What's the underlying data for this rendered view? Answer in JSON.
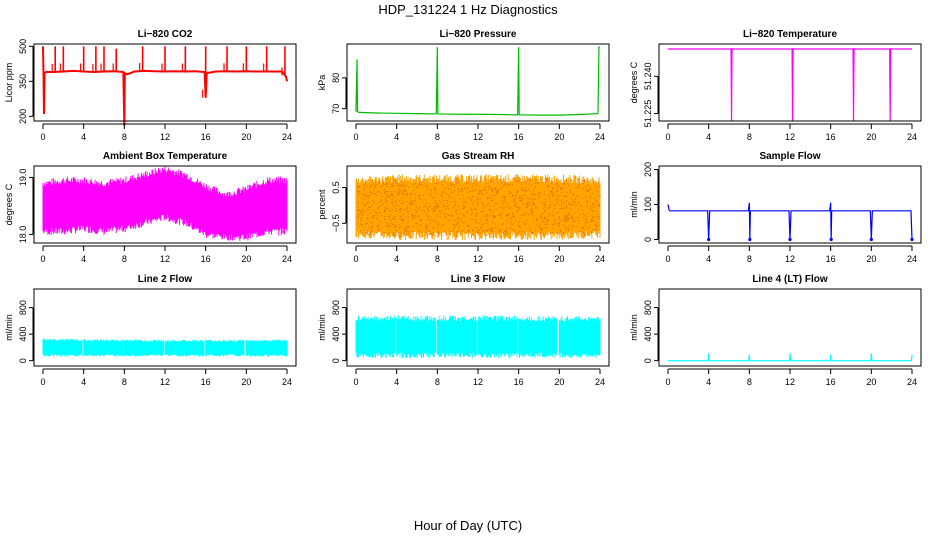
{
  "figure": {
    "title": "HDP_131224  1 Hz Diagnostics",
    "xlabel": "Hour of Day (UTC)"
  },
  "chart_data": [
    {
      "id": "co2",
      "type": "line",
      "title": "Li−820 CO2",
      "ylabel": "Licor ppm",
      "xlim": [
        0,
        24
      ],
      "ylim": [
        180,
        510
      ],
      "xticks": [
        "0",
        "4",
        "8",
        "12",
        "16",
        "20",
        "24"
      ],
      "yticks": [
        200,
        350,
        500
      ],
      "ytick_labels": [
        "200",
        "350",
        "500"
      ],
      "color": "#ff0000",
      "render": "line",
      "x": [
        0,
        0.05,
        0.1,
        0.15,
        0.3,
        1,
        2,
        3,
        4,
        5,
        6,
        7,
        7.9,
        8,
        8.05,
        8.3,
        9,
        10,
        11,
        12,
        13,
        14,
        15,
        15.9,
        16,
        16.1,
        17,
        18,
        19,
        20,
        21,
        22,
        23,
        23.5,
        23.9,
        24
      ],
      "y": [
        500,
        380,
        210,
        385,
        390,
        390,
        392,
        395,
        392,
        390,
        392,
        393,
        390,
        160,
        385,
        380,
        392,
        395,
        393,
        392,
        393,
        392,
        393,
        390,
        280,
        385,
        392,
        393,
        392,
        393,
        392,
        392,
        392,
        392,
        370,
        350
      ],
      "spikes": [
        {
          "x": 1.2,
          "y": 500
        },
        {
          "x": 2.0,
          "y": 500
        },
        {
          "x": 4.0,
          "y": 500
        },
        {
          "x": 5.2,
          "y": 500
        },
        {
          "x": 6.0,
          "y": 500
        },
        {
          "x": 7.2,
          "y": 490
        },
        {
          "x": 9.8,
          "y": 500
        },
        {
          "x": 12.0,
          "y": 500
        },
        {
          "x": 14.0,
          "y": 500
        },
        {
          "x": 16.0,
          "y": 500
        },
        {
          "x": 18.1,
          "y": 500
        },
        {
          "x": 20.0,
          "y": 500
        },
        {
          "x": 22.0,
          "y": 500
        },
        {
          "x": 23.8,
          "y": 500
        }
      ]
    },
    {
      "id": "pressure",
      "type": "line",
      "title": "Li−820 Pressure",
      "ylabel": "kPa",
      "xlim": [
        0,
        24
      ],
      "ylim": [
        66,
        91
      ],
      "xticks": [
        "0",
        "4",
        "8",
        "12",
        "16",
        "20",
        "24"
      ],
      "yticks": [
        70,
        80
      ],
      "ytick_labels": [
        "70",
        "80"
      ],
      "color": "#00bb00",
      "render": "line",
      "x": [
        0,
        0.1,
        0.15,
        0.3,
        2,
        4,
        6,
        7.9,
        8,
        8.05,
        10,
        12,
        14,
        15.9,
        16,
        16.05,
        18,
        20,
        22,
        23.8,
        23.9,
        24
      ],
      "y": [
        69,
        86,
        69,
        68.8,
        68.6,
        68.5,
        68.4,
        68.3,
        90,
        68.3,
        68.2,
        68.2,
        68.1,
        68,
        90,
        68,
        67.9,
        67.9,
        68.1,
        68.4,
        90,
        90
      ]
    },
    {
      "id": "li_temp",
      "type": "line",
      "title": "Li−820 Temperature",
      "ylabel": "degrees C",
      "xlim": [
        0,
        24
      ],
      "ylim": [
        51.222,
        51.253
      ],
      "xticks": [
        "0",
        "4",
        "8",
        "12",
        "16",
        "20",
        "24"
      ],
      "yticks": [
        51.225,
        51.24
      ],
      "ytick_labels": [
        "51.225",
        "51.240"
      ],
      "color": "#ff00ff",
      "baseline_color": "#aa00dd",
      "render": "line",
      "x": [
        0,
        6.2,
        6.25,
        6.3,
        12.2,
        12.25,
        12.3,
        18.2,
        18.25,
        18.3,
        21.8,
        21.85,
        21.9,
        24
      ],
      "y": [
        51.251,
        51.251,
        51.222,
        51.251,
        51.251,
        51.222,
        51.251,
        51.251,
        51.222,
        51.251,
        51.251,
        51.222,
        51.251,
        51.251
      ]
    },
    {
      "id": "box_temp",
      "type": "area",
      "title": "Ambient Box Temperature",
      "ylabel": "degrees C",
      "xlim": [
        0,
        24
      ],
      "ylim": [
        17.85,
        19.2
      ],
      "xticks": [
        "0",
        "4",
        "8",
        "12",
        "16",
        "20",
        "24"
      ],
      "yticks": [
        18.0,
        19.0
      ],
      "ytick_labels": [
        "18.0",
        "19.0"
      ],
      "color": "#ff00ff",
      "render": "band",
      "x": [
        0,
        2,
        4,
        6,
        8,
        10,
        12,
        13,
        14,
        16,
        18,
        20,
        22,
        24
      ],
      "upper": [
        18.9,
        18.95,
        18.95,
        18.9,
        18.95,
        19.05,
        19.15,
        19.1,
        19.05,
        18.85,
        18.7,
        18.8,
        18.95,
        18.95
      ],
      "lower": [
        18.05,
        18.05,
        18.1,
        18.05,
        18.1,
        18.2,
        18.3,
        18.25,
        18.2,
        18.0,
        17.95,
        17.95,
        18.05,
        18.05
      ]
    },
    {
      "id": "rh",
      "type": "area",
      "title": "Gas Stream RH",
      "ylabel": "percent",
      "xlim": [
        0,
        24
      ],
      "ylim": [
        -1.05,
        1.1
      ],
      "xticks": [
        "0",
        "4",
        "8",
        "12",
        "16",
        "20",
        "24"
      ],
      "yticks": [
        -0.5,
        0.5
      ],
      "ytick_labels": [
        "−0.5",
        "0.5"
      ],
      "color": "#ffa500",
      "render": "band",
      "dotted": true,
      "dot_color": "#cc3300",
      "x": [
        0,
        4,
        8,
        12,
        16,
        20,
        24
      ],
      "upper": [
        0.7,
        0.75,
        0.75,
        0.75,
        0.75,
        0.75,
        0.7
      ],
      "lower": [
        -0.8,
        -0.85,
        -0.85,
        -0.85,
        -0.85,
        -0.85,
        -0.8
      ]
    },
    {
      "id": "sample_flow",
      "type": "line",
      "title": "Sample Flow",
      "ylabel": "ml/min",
      "xlim": [
        0,
        24
      ],
      "ylim": [
        -10,
        210
      ],
      "xticks": [
        "0",
        "4",
        "8",
        "12",
        "16",
        "20",
        "24"
      ],
      "yticks": [
        0,
        100,
        200
      ],
      "ytick_labels": [
        "0",
        "100",
        "200"
      ],
      "color": "#0000ff",
      "render": "line",
      "x": [
        0,
        0.1,
        0.2,
        3.9,
        4,
        4.1,
        7.9,
        8,
        8.05,
        8.1,
        11.9,
        12,
        12.1,
        15.9,
        16,
        16.05,
        16.1,
        19.9,
        20,
        20.1,
        23.9,
        24
      ],
      "y": [
        100,
        85,
        82,
        82,
        0,
        82,
        82,
        105,
        0,
        82,
        82,
        0,
        82,
        82,
        105,
        0,
        82,
        82,
        0,
        82,
        82,
        0
      ]
    },
    {
      "id": "line2",
      "type": "area",
      "title": "Line 2 Flow",
      "ylabel": "ml/min",
      "xlim": [
        0,
        24
      ],
      "ylim": [
        -80,
        1080
      ],
      "xticks": [
        "0",
        "4",
        "8",
        "12",
        "16",
        "20",
        "24"
      ],
      "yticks": [
        0,
        400,
        800
      ],
      "ytick_labels": [
        "0",
        "400",
        "800"
      ],
      "color": "#00ffff",
      "render": "band",
      "x": [
        0,
        4,
        8,
        12,
        16,
        20,
        24
      ],
      "upper": [
        320,
        310,
        305,
        300,
        300,
        300,
        300
      ],
      "lower": [
        80,
        80,
        80,
        80,
        80,
        80,
        80
      ],
      "gaps": [
        3.9,
        7.9,
        11.9,
        15.9,
        19.9
      ]
    },
    {
      "id": "line3",
      "type": "area",
      "title": "Line 3 Flow",
      "ylabel": "ml/min",
      "xlim": [
        0,
        24
      ],
      "ylim": [
        -80,
        1080
      ],
      "xticks": [
        "0",
        "4",
        "8",
        "12",
        "16",
        "20",
        "24"
      ],
      "yticks": [
        0,
        400,
        800
      ],
      "ytick_labels": [
        "0",
        "400",
        "800"
      ],
      "color": "#00ffff",
      "render": "band",
      "x": [
        0,
        4,
        8,
        12,
        16,
        20,
        24
      ],
      "upper": [
        640,
        640,
        640,
        640,
        640,
        630,
        630
      ],
      "lower": [
        80,
        80,
        80,
        80,
        80,
        80,
        80
      ],
      "gaps": [
        3.9,
        7.9,
        11.9,
        15.9,
        19.9
      ]
    },
    {
      "id": "line4",
      "type": "line",
      "title": "Line 4 (LT) Flow",
      "ylabel": "ml/min",
      "xlim": [
        0,
        24
      ],
      "ylim": [
        -80,
        1080
      ],
      "xticks": [
        "0",
        "4",
        "8",
        "12",
        "16",
        "20",
        "24"
      ],
      "yticks": [
        0,
        400,
        800
      ],
      "ytick_labels": [
        "0",
        "400",
        "800"
      ],
      "color": "#00ffff",
      "render": "line",
      "x": [
        0,
        3.95,
        4,
        4.05,
        7.95,
        8,
        8.05,
        11.95,
        12,
        12.05,
        15.95,
        16,
        16.05,
        19.95,
        20,
        20.05,
        23.95,
        24
      ],
      "y": [
        0,
        0,
        110,
        0,
        0,
        90,
        0,
        0,
        110,
        0,
        0,
        90,
        0,
        0,
        110,
        0,
        0,
        90
      ]
    }
  ]
}
